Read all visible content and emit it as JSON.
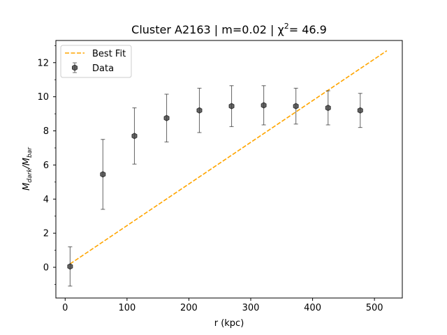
{
  "chart_data": {
    "type": "scatter",
    "title": {
      "prefix": "Cluster A2163 | m=0.02 | ",
      "chi": "χ",
      "sup": "2",
      "suffix": "= 46.9"
    },
    "xlabel": "r (kpc)",
    "ylabel": {
      "base1": "M",
      "sub1": "dark",
      "sep": "/",
      "base2": "M",
      "sub2": "bar"
    },
    "xlim": [
      -15,
      545
    ],
    "ylim": [
      -1.8,
      13.3
    ],
    "xticks": [
      0,
      100,
      200,
      300,
      400,
      500
    ],
    "yticks": [
      0,
      2,
      4,
      6,
      8,
      10,
      12
    ],
    "y_minor_ticks": [
      -1,
      1,
      3,
      5,
      7,
      9,
      11,
      13
    ],
    "grid": false,
    "legend_position": "upper-left",
    "legend": [
      {
        "label": "Best Fit",
        "kind": "dashed-line",
        "color": "#ffa500"
      },
      {
        "label": "Data",
        "kind": "errorbar-marker",
        "color": "#333333"
      }
    ],
    "series": [
      {
        "name": "Data",
        "kind": "errorbar",
        "color": "#333333",
        "x": [
          8,
          61,
          112,
          164,
          217,
          269,
          321,
          373,
          425,
          477
        ],
        "y": [
          0.05,
          5.45,
          7.7,
          8.75,
          9.2,
          9.45,
          9.5,
          9.45,
          9.35,
          9.2
        ],
        "yerr": [
          1.15,
          2.05,
          1.65,
          1.4,
          1.3,
          1.2,
          1.15,
          1.05,
          1.0,
          1.0
        ]
      },
      {
        "name": "Best Fit",
        "kind": "line",
        "style": "dashed",
        "color": "#ffa500",
        "x": [
          8,
          520
        ],
        "y": [
          0.2,
          12.7
        ]
      }
    ]
  }
}
